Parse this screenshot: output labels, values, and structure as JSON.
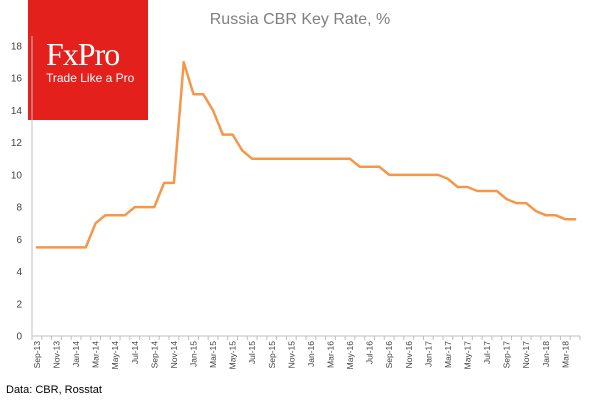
{
  "logo": {
    "name": "FxPro",
    "tagline": "Trade Like a Pro",
    "bg_color": "#e3201b"
  },
  "source_note": "Data: CBR, Rosstat",
  "chart_data": {
    "type": "line",
    "title": "Russia CBR Key Rate, %",
    "xlabel": "",
    "ylabel": "",
    "ylim": [
      0,
      18
    ],
    "yticks": [
      0,
      2,
      4,
      6,
      8,
      10,
      12,
      14,
      16,
      18
    ],
    "grid": false,
    "legend": "none",
    "x_tick_labels": [
      "Sep-13",
      "Nov-13",
      "Jan-14",
      "Mar-14",
      "May-14",
      "Jul-14",
      "Sep-14",
      "Nov-14",
      "Jan-15",
      "Mar-15",
      "May-15",
      "Jul-15",
      "Sep-15",
      "Nov-15",
      "Jan-16",
      "Mar-16",
      "May-16",
      "Jul-16",
      "Sep-16",
      "Nov-16",
      "Jan-17",
      "Mar-17",
      "May-17",
      "Jul-17",
      "Sep-17",
      "Nov-17",
      "Jan-18",
      "Mar-18"
    ],
    "series": [
      {
        "color": "#f4974a",
        "x": [
          "Sep-13",
          "Oct-13",
          "Nov-13",
          "Dec-13",
          "Jan-14",
          "Feb-14",
          "Mar-14",
          "Apr-14",
          "May-14",
          "Jun-14",
          "Jul-14",
          "Aug-14",
          "Sep-14",
          "Oct-14",
          "Nov-14",
          "Dec-14",
          "Jan-15",
          "Feb-15",
          "Mar-15",
          "Apr-15",
          "May-15",
          "Jun-15",
          "Jul-15",
          "Aug-15",
          "Sep-15",
          "Oct-15",
          "Nov-15",
          "Dec-15",
          "Jan-16",
          "Feb-16",
          "Mar-16",
          "Apr-16",
          "May-16",
          "Jun-16",
          "Jul-16",
          "Aug-16",
          "Sep-16",
          "Oct-16",
          "Nov-16",
          "Dec-16",
          "Jan-17",
          "Feb-17",
          "Mar-17",
          "Apr-17",
          "May-17",
          "Jun-17",
          "Jul-17",
          "Aug-17",
          "Sep-17",
          "Oct-17",
          "Nov-17",
          "Dec-17",
          "Jan-18",
          "Feb-18",
          "Mar-18",
          "Apr-18"
        ],
        "values": [
          5.5,
          5.5,
          5.5,
          5.5,
          5.5,
          5.5,
          7.0,
          7.5,
          7.5,
          7.5,
          8.0,
          8.0,
          8.0,
          9.5,
          9.5,
          17.0,
          15.0,
          15.0,
          14.0,
          12.5,
          12.5,
          11.5,
          11.0,
          11.0,
          11.0,
          11.0,
          11.0,
          11.0,
          11.0,
          11.0,
          11.0,
          11.0,
          11.0,
          10.5,
          10.5,
          10.5,
          10.0,
          10.0,
          10.0,
          10.0,
          10.0,
          10.0,
          9.75,
          9.25,
          9.25,
          9.0,
          9.0,
          9.0,
          8.5,
          8.25,
          8.25,
          7.75,
          7.5,
          7.5,
          7.25,
          7.25
        ]
      }
    ]
  }
}
